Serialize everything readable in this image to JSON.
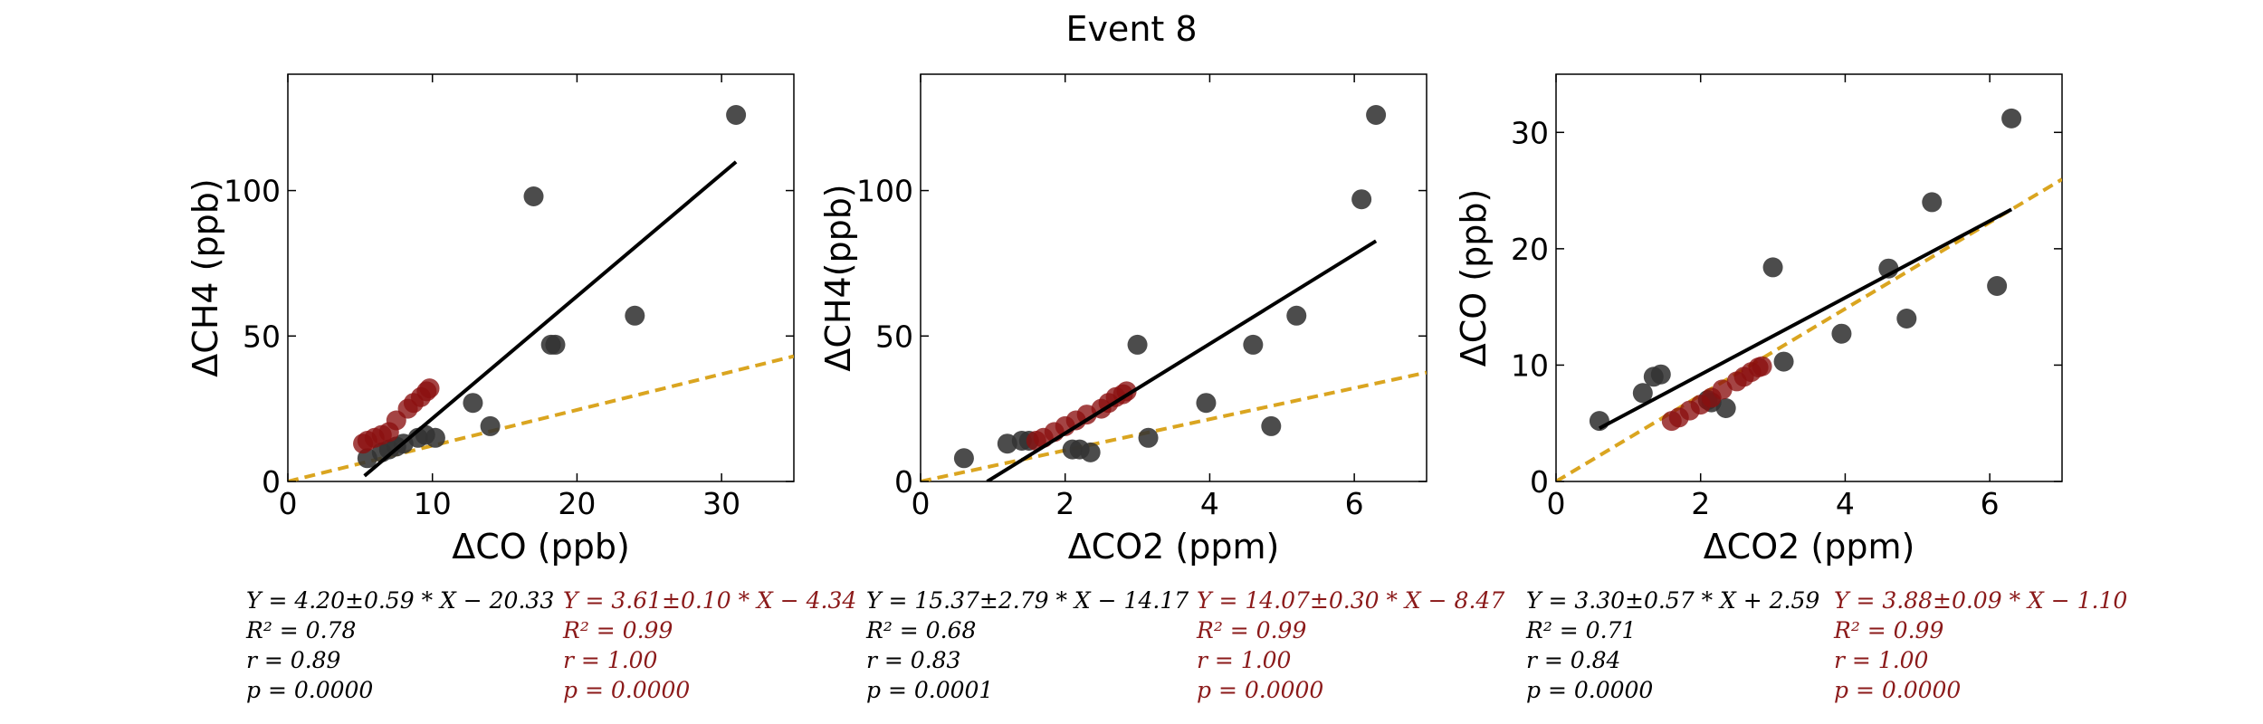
{
  "title": "Event 8",
  "colors": {
    "black_points": "#333333",
    "red_points": "#8b1010",
    "black_line": "#000000",
    "dashed_line": "#daa520",
    "stats_black": "#000000",
    "stats_red": "#8b1a1a"
  },
  "chart_data": [
    {
      "type": "scatter",
      "xlabel": "ΔCO (ppb)",
      "ylabel": "ΔCH4 (ppb)",
      "xlim": [
        0,
        35
      ],
      "ylim": [
        0,
        140
      ],
      "xticks": [
        0,
        10,
        20,
        30
      ],
      "yticks": [
        0,
        50,
        100
      ],
      "black_points": [
        [
          5.5,
          8
        ],
        [
          6.5,
          10
        ],
        [
          7,
          11
        ],
        [
          7.5,
          12
        ],
        [
          8,
          13
        ],
        [
          9,
          15
        ],
        [
          9.5,
          16
        ],
        [
          10.2,
          15
        ],
        [
          12.8,
          27
        ],
        [
          14,
          19
        ],
        [
          17,
          98
        ],
        [
          18.2,
          47
        ],
        [
          18.5,
          47
        ],
        [
          24,
          57
        ],
        [
          31,
          126
        ]
      ],
      "red_points": [
        [
          5.2,
          13
        ],
        [
          5.5,
          14
        ],
        [
          6,
          15
        ],
        [
          6.5,
          16
        ],
        [
          7,
          17
        ],
        [
          7.5,
          21
        ],
        [
          8.3,
          25
        ],
        [
          8.7,
          27
        ],
        [
          9.2,
          29
        ],
        [
          9.6,
          31
        ],
        [
          9.8,
          32
        ]
      ],
      "black_fit": {
        "slope": 4.2,
        "intercept": -20.33,
        "x_range": [
          5.3,
          31
        ]
      },
      "dashed_fit": {
        "slope": 1.23,
        "intercept": 0,
        "x_range": [
          0,
          35
        ]
      },
      "stats_black": [
        "Y = 4.20±0.59 * X − 20.33",
        "R² = 0.78",
        "r = 0.89",
        "p = 0.0000"
      ],
      "stats_red": [
        "Y = 3.61±0.10 * X − 4.34",
        "R² = 0.99",
        "r = 1.00",
        "p = 0.0000"
      ]
    },
    {
      "type": "scatter",
      "xlabel": "ΔCO2 (ppm)",
      "ylabel": "ΔCH4(ppb)",
      "xlim": [
        0,
        7
      ],
      "ylim": [
        0,
        140
      ],
      "xticks": [
        0,
        2,
        4,
        6
      ],
      "yticks": [
        0,
        50,
        100
      ],
      "black_points": [
        [
          0.6,
          8
        ],
        [
          1.2,
          13
        ],
        [
          1.4,
          14
        ],
        [
          1.5,
          14
        ],
        [
          2.1,
          11
        ],
        [
          2.2,
          11
        ],
        [
          2.35,
          10
        ],
        [
          3.0,
          47
        ],
        [
          3.15,
          15
        ],
        [
          3.95,
          27
        ],
        [
          4.6,
          47
        ],
        [
          4.85,
          19
        ],
        [
          5.2,
          57
        ],
        [
          6.1,
          97
        ],
        [
          6.3,
          126
        ]
      ],
      "red_points": [
        [
          1.6,
          14
        ],
        [
          1.7,
          15
        ],
        [
          1.85,
          17
        ],
        [
          2.0,
          19
        ],
        [
          2.15,
          21
        ],
        [
          2.3,
          23
        ],
        [
          2.5,
          25
        ],
        [
          2.6,
          27
        ],
        [
          2.7,
          29
        ],
        [
          2.8,
          30
        ],
        [
          2.85,
          31
        ]
      ],
      "black_fit": {
        "slope": 15.37,
        "intercept": -14.17,
        "x_range": [
          0.92,
          6.3
        ]
      },
      "dashed_fit": {
        "slope": 5.35,
        "intercept": 0,
        "x_range": [
          0,
          7
        ]
      },
      "stats_black": [
        "Y = 15.37±2.79 * X − 14.17",
        "R² = 0.68",
        "r = 0.83",
        "p = 0.0001"
      ],
      "stats_red": [
        "Y = 14.07±0.30 * X − 8.47",
        "R² = 0.99",
        "r = 1.00",
        "p = 0.0000"
      ]
    },
    {
      "type": "scatter",
      "xlabel": "ΔCO2 (ppm)",
      "ylabel": "ΔCO (ppb)",
      "xlim": [
        0,
        7
      ],
      "ylim": [
        0,
        35
      ],
      "xticks": [
        0,
        2,
        4,
        6
      ],
      "yticks": [
        0,
        10,
        20,
        30
      ],
      "black_points": [
        [
          0.6,
          5.2
        ],
        [
          1.2,
          7.6
        ],
        [
          1.35,
          9
        ],
        [
          1.45,
          9.2
        ],
        [
          2.1,
          7
        ],
        [
          2.15,
          6.8
        ],
        [
          2.35,
          6.3
        ],
        [
          3.0,
          18.4
        ],
        [
          3.15,
          10.3
        ],
        [
          3.95,
          12.7
        ],
        [
          4.6,
          18.3
        ],
        [
          4.85,
          14
        ],
        [
          5.2,
          24
        ],
        [
          6.1,
          16.8
        ],
        [
          6.3,
          31.2
        ]
      ],
      "red_points": [
        [
          1.6,
          5.2
        ],
        [
          1.7,
          5.5
        ],
        [
          1.85,
          6.1
        ],
        [
          2.0,
          6.6
        ],
        [
          2.15,
          7.2
        ],
        [
          2.3,
          7.9
        ],
        [
          2.5,
          8.6
        ],
        [
          2.6,
          9
        ],
        [
          2.7,
          9.4
        ],
        [
          2.8,
          9.8
        ],
        [
          2.85,
          9.9
        ]
      ],
      "black_fit": {
        "slope": 3.3,
        "intercept": 2.59,
        "x_range": [
          0.6,
          6.3
        ]
      },
      "dashed_fit": {
        "slope": 3.71,
        "intercept": 0,
        "x_range": [
          0,
          7
        ]
      },
      "stats_black": [
        "Y = 3.30±0.57 * X + 2.59",
        "R² = 0.71",
        "r = 0.84",
        "p = 0.0000"
      ],
      "stats_red": [
        "Y = 3.88±0.09 * X − 1.10",
        "R² = 0.99",
        "r = 1.00",
        "p = 0.0000"
      ]
    }
  ]
}
